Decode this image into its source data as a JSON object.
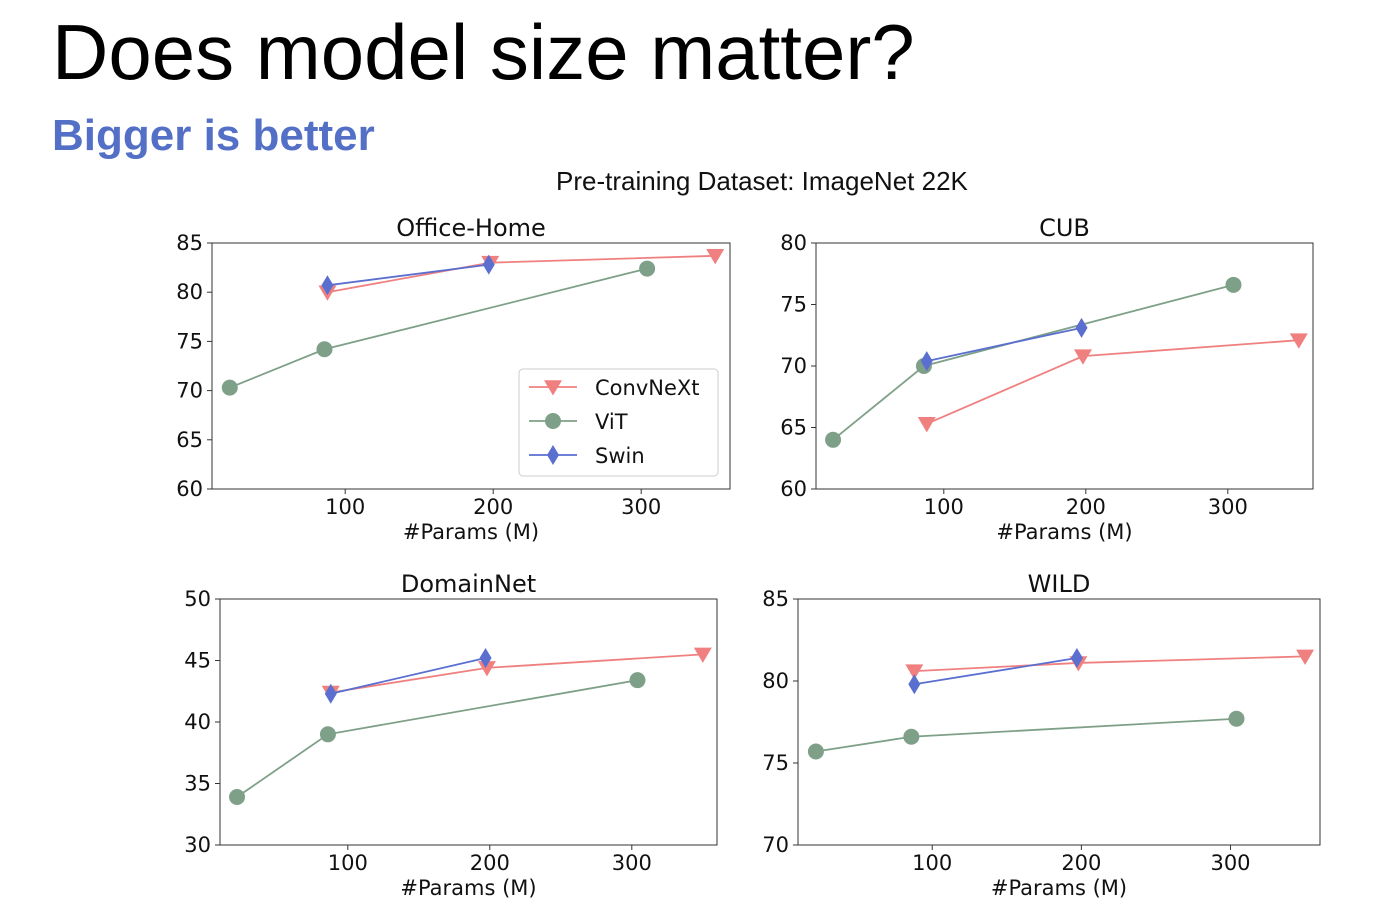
{
  "slide": {
    "title": "Does model size matter?",
    "subtitle": "Bigger is better",
    "figure_title": "Pre-training Dataset: ImageNet 22K"
  },
  "colors": {
    "ConvNeXt": "#f08080",
    "ViT": "#7fa088",
    "Swin": "#5a6fd0",
    "subtitle": "#5470c6"
  },
  "chart_data": [
    {
      "type": "line",
      "title": "Office-Home",
      "xlabel": "#Params (M)",
      "ylabel": "",
      "xlim": [
        10,
        360
      ],
      "ylim": [
        60,
        85
      ],
      "xticks": [
        100,
        200,
        300
      ],
      "yticks": [
        60,
        65,
        70,
        75,
        80,
        85
      ],
      "legend": "lower-right",
      "series": [
        {
          "name": "ConvNeXt",
          "marker": "triangle-down",
          "x": [
            88,
            198,
            350
          ],
          "y": [
            80,
            83,
            83.7
          ]
        },
        {
          "name": "ViT",
          "marker": "circle",
          "x": [
            22,
            86,
            304
          ],
          "y": [
            70.3,
            74.2,
            82.4
          ]
        },
        {
          "name": "Swin",
          "marker": "diamond",
          "x": [
            88,
            197
          ],
          "y": [
            80.7,
            82.8
          ]
        }
      ]
    },
    {
      "type": "line",
      "title": "CUB",
      "xlabel": "#Params (M)",
      "ylabel": "",
      "xlim": [
        10,
        360
      ],
      "ylim": [
        60,
        80
      ],
      "xticks": [
        100,
        200,
        300
      ],
      "yticks": [
        60,
        65,
        70,
        75,
        80
      ],
      "series": [
        {
          "name": "ConvNeXt",
          "marker": "triangle-down",
          "x": [
            88,
            198,
            350
          ],
          "y": [
            65.3,
            70.8,
            72.1
          ]
        },
        {
          "name": "ViT",
          "marker": "circle",
          "x": [
            22,
            86,
            304
          ],
          "y": [
            64,
            70,
            76.6
          ]
        },
        {
          "name": "Swin",
          "marker": "diamond",
          "x": [
            88,
            197
          ],
          "y": [
            70.4,
            73.1
          ]
        }
      ]
    },
    {
      "type": "line",
      "title": "DomainNet",
      "xlabel": "#Params (M)",
      "ylabel": "",
      "xlim": [
        10,
        360
      ],
      "ylim": [
        30,
        50
      ],
      "xticks": [
        100,
        200,
        300
      ],
      "yticks": [
        30,
        35,
        40,
        45,
        50
      ],
      "series": [
        {
          "name": "ConvNeXt",
          "marker": "triangle-down",
          "x": [
            88,
            198,
            350
          ],
          "y": [
            42.4,
            44.4,
            45.5
          ]
        },
        {
          "name": "ViT",
          "marker": "circle",
          "x": [
            22,
            86,
            304
          ],
          "y": [
            33.9,
            39,
            43.4
          ]
        },
        {
          "name": "Swin",
          "marker": "diamond",
          "x": [
            88,
            197
          ],
          "y": [
            42.3,
            45.2
          ]
        }
      ]
    },
    {
      "type": "line",
      "title": "WILD",
      "xlabel": "#Params (M)",
      "ylabel": "",
      "xlim": [
        10,
        360
      ],
      "ylim": [
        70,
        85
      ],
      "xticks": [
        100,
        200,
        300
      ],
      "yticks": [
        70,
        75,
        80,
        85
      ],
      "series": [
        {
          "name": "ConvNeXt",
          "marker": "triangle-down",
          "x": [
            88,
            198,
            350
          ],
          "y": [
            80.6,
            81.1,
            81.5
          ]
        },
        {
          "name": "ViT",
          "marker": "circle",
          "x": [
            22,
            86,
            304
          ],
          "y": [
            75.7,
            76.6,
            77.7
          ]
        },
        {
          "name": "Swin",
          "marker": "diamond",
          "x": [
            88,
            197
          ],
          "y": [
            79.8,
            81.4
          ]
        }
      ]
    }
  ]
}
